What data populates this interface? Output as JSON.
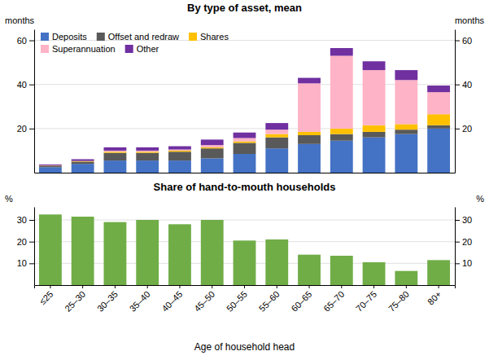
{
  "chart_data": [
    {
      "type": "bar",
      "stacked": true,
      "title": "By type of asset, mean",
      "ylabel": "months",
      "y2label": "months",
      "categories": [
        "≤25",
        "25–30",
        "30–35",
        "35–40",
        "40–45",
        "45–50",
        "50–55",
        "55–60",
        "60–65",
        "65–70",
        "70–75",
        "75–80",
        "80+"
      ],
      "series": [
        {
          "name": "Deposits",
          "color": "#4472C4",
          "values": [
            2.5,
            4.0,
            5.5,
            5.5,
            5.5,
            6.5,
            8.5,
            11.0,
            13.0,
            14.5,
            16.0,
            17.5,
            20.0
          ]
        },
        {
          "name": "Offset and redraw",
          "color": "#595959",
          "values": [
            0.5,
            1.0,
            3.5,
            3.5,
            4.0,
            4.5,
            5.0,
            5.0,
            4.0,
            3.0,
            2.5,
            2.0,
            1.5
          ]
        },
        {
          "name": "Shares",
          "color": "#FFC000",
          "values": [
            0.2,
            0.3,
            0.5,
            0.5,
            0.5,
            0.5,
            0.7,
            1.5,
            1.5,
            2.5,
            3.0,
            2.5,
            5.0
          ]
        },
        {
          "name": "Superannuation",
          "color": "#FFB3C6",
          "values": [
            0.0,
            0.0,
            0.5,
            0.5,
            0.5,
            1.0,
            1.5,
            2.0,
            22.0,
            33.0,
            25.0,
            20.0,
            10.0
          ]
        },
        {
          "name": "Other",
          "color": "#7030A0",
          "values": [
            0.5,
            0.8,
            1.5,
            1.5,
            1.5,
            2.5,
            2.5,
            3.0,
            2.5,
            3.5,
            4.0,
            4.5,
            3.0
          ]
        }
      ],
      "ylim": [
        0,
        65
      ],
      "yticks": [
        20,
        40,
        60
      ],
      "y2lim": [
        0,
        65
      ],
      "y2ticks": [
        20,
        40,
        60
      ],
      "grid": true,
      "legend": "upper left",
      "tick_labels": "y"
    },
    {
      "type": "bar",
      "title": "Share of hand-to-mouth households",
      "ylabel": "%",
      "y2label": "%",
      "xlabel": "Age of household head",
      "categories": [
        "≤25",
        "25–30",
        "30–35",
        "35–40",
        "40–45",
        "45–50",
        "50–55",
        "55–60",
        "60–65",
        "65–70",
        "70–75",
        "75–80",
        "80+"
      ],
      "values": [
        32.5,
        31.5,
        29.0,
        30.0,
        28.0,
        30.0,
        20.5,
        21.0,
        14.0,
        13.5,
        10.5,
        6.5,
        11.5
      ],
      "color": "#70AD47",
      "ylim": [
        0,
        36
      ],
      "yticks": [
        10,
        20,
        30
      ],
      "y2lim": [
        0,
        36
      ],
      "y2ticks": [
        10,
        20,
        30
      ],
      "grid": true
    }
  ]
}
